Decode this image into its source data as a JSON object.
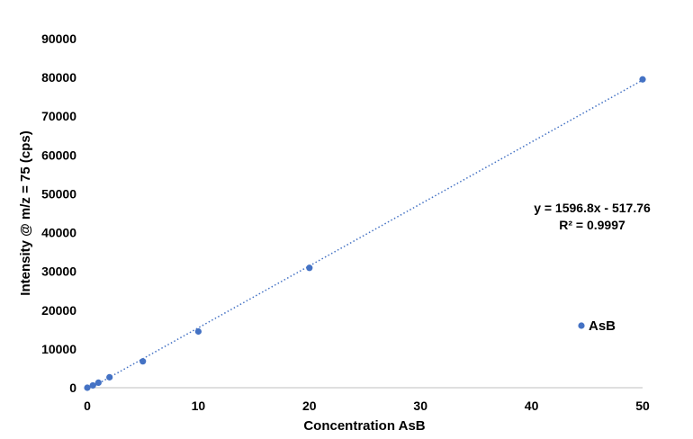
{
  "chart_data": {
    "type": "scatter",
    "xlabel": "Concentration AsB",
    "ylabel": "Intensity @ m/z = 75 (cps)",
    "xlim": [
      0,
      50
    ],
    "ylim": [
      0,
      90000
    ],
    "x_ticks": [
      0,
      10,
      20,
      30,
      40,
      50
    ],
    "y_ticks": [
      0,
      10000,
      20000,
      30000,
      40000,
      50000,
      60000,
      70000,
      80000,
      90000
    ],
    "grid": false,
    "legend": {
      "placement": "bottom-right",
      "entries": [
        "AsB"
      ]
    },
    "series": [
      {
        "name": "AsB",
        "color": "#4472c4",
        "x": [
          0,
          0.5,
          1,
          2,
          5,
          10,
          20,
          50
        ],
        "y": [
          0,
          600,
          1300,
          2700,
          6800,
          14500,
          30900,
          79500
        ]
      }
    ],
    "trendline": {
      "type": "linear",
      "slope": 1596.8,
      "intercept": -517.76,
      "style": "dotted",
      "color": "#4472c4",
      "equation_label": "y = 1596.8x - 517.76",
      "r2_label": "R² = 0.9997"
    }
  }
}
